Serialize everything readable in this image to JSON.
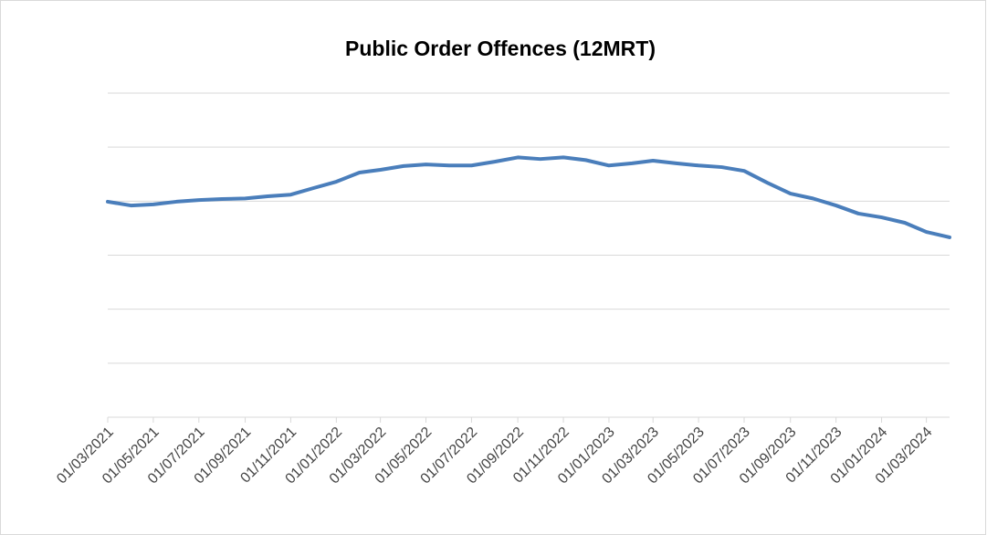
{
  "chart_data": {
    "type": "line",
    "title": "Public Order Offences (12MRT)",
    "x": [
      "01/03/2021",
      "01/04/2021",
      "01/05/2021",
      "01/06/2021",
      "01/07/2021",
      "01/08/2021",
      "01/09/2021",
      "01/10/2021",
      "01/11/2021",
      "01/12/2021",
      "01/01/2022",
      "01/02/2022",
      "01/03/2022",
      "01/04/2022",
      "01/05/2022",
      "01/06/2022",
      "01/07/2022",
      "01/08/2022",
      "01/09/2022",
      "01/10/2022",
      "01/11/2022",
      "01/12/2022",
      "01/01/2023",
      "01/02/2023",
      "01/03/2023",
      "01/04/2023",
      "01/05/2023",
      "01/06/2023",
      "01/07/2023",
      "01/08/2023",
      "01/09/2023",
      "01/10/2023",
      "01/11/2023",
      "01/12/2023",
      "01/01/2024",
      "01/02/2024",
      "01/03/2024",
      "01/04/2024"
    ],
    "series": [
      {
        "name": "Public Order Offences",
        "color": "#4a7ebb",
        "values": [
          3.99,
          3.92,
          3.94,
          3.99,
          4.02,
          4.04,
          4.05,
          4.09,
          4.12,
          4.24,
          4.36,
          4.53,
          4.58,
          4.65,
          4.68,
          4.66,
          4.66,
          4.73,
          4.81,
          4.78,
          4.81,
          4.76,
          4.66,
          4.7,
          4.75,
          4.7,
          4.66,
          4.63,
          4.56,
          4.34,
          4.14,
          4.05,
          3.92,
          3.77,
          3.7,
          3.6,
          3.43,
          3.33
        ]
      }
    ],
    "xlim": [
      "01/03/2021",
      "01/04/2024"
    ],
    "xticks": [
      "01/03/2021",
      "01/05/2021",
      "01/07/2021",
      "01/09/2021",
      "01/11/2021",
      "01/01/2022",
      "01/03/2022",
      "01/05/2022",
      "01/07/2022",
      "01/09/2022",
      "01/11/2022",
      "01/01/2023",
      "01/03/2023",
      "01/05/2023",
      "01/07/2023",
      "01/09/2023",
      "01/11/2023",
      "01/01/2024",
      "01/03/2024"
    ],
    "ylim": [
      0,
      6
    ],
    "yticks": [
      0,
      1,
      2,
      3,
      4,
      5,
      6
    ],
    "grid": true
  }
}
